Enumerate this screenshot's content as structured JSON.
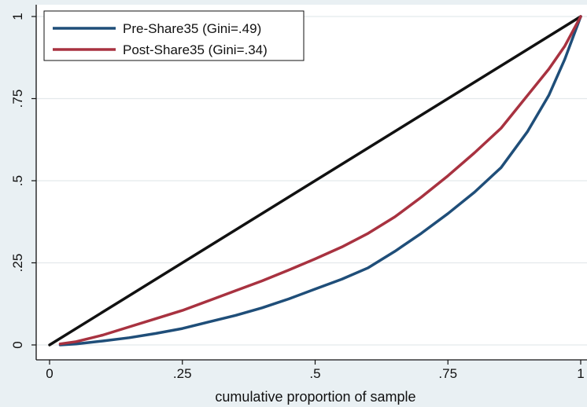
{
  "chart_data": {
    "type": "line",
    "title": "",
    "xlabel": "cumulative proportion of sample",
    "ylabel": "",
    "xlim": [
      0,
      1
    ],
    "ylim": [
      0,
      1
    ],
    "grid": true,
    "legend_position": "top-left",
    "x_ticks": [
      {
        "value": 0,
        "label": "0"
      },
      {
        "value": 0.25,
        "label": ".25"
      },
      {
        "value": 0.5,
        "label": ".5"
      },
      {
        "value": 0.75,
        "label": ".75"
      },
      {
        "value": 1,
        "label": "1"
      }
    ],
    "y_ticks": [
      {
        "value": 0,
        "label": "0"
      },
      {
        "value": 0.25,
        "label": ".25"
      },
      {
        "value": 0.5,
        "label": ".5"
      },
      {
        "value": 0.75,
        "label": ".75"
      },
      {
        "value": 1,
        "label": "1"
      }
    ],
    "series": [
      {
        "name": "",
        "color": "#111111",
        "x": [
          0,
          1
        ],
        "y": [
          0,
          1
        ]
      },
      {
        "name": "Pre-Share35 (Gini=.49)",
        "color": "#1f4e79",
        "x": [
          0.02,
          0.05,
          0.1,
          0.15,
          0.2,
          0.25,
          0.3,
          0.35,
          0.4,
          0.45,
          0.5,
          0.55,
          0.6,
          0.65,
          0.7,
          0.75,
          0.8,
          0.85,
          0.9,
          0.94,
          0.97,
          1.0
        ],
        "y": [
          0.0,
          0.003,
          0.012,
          0.022,
          0.035,
          0.05,
          0.07,
          0.09,
          0.113,
          0.14,
          0.17,
          0.2,
          0.235,
          0.285,
          0.34,
          0.4,
          0.465,
          0.54,
          0.65,
          0.76,
          0.87,
          1.0
        ]
      },
      {
        "name": "Post-Share35 (Gini=.34)",
        "color": "#a83240",
        "x": [
          0.02,
          0.05,
          0.1,
          0.15,
          0.2,
          0.25,
          0.3,
          0.35,
          0.4,
          0.45,
          0.5,
          0.55,
          0.6,
          0.65,
          0.7,
          0.75,
          0.8,
          0.85,
          0.9,
          0.94,
          0.97,
          1.0
        ],
        "y": [
          0.003,
          0.01,
          0.03,
          0.055,
          0.08,
          0.105,
          0.135,
          0.165,
          0.195,
          0.228,
          0.262,
          0.298,
          0.34,
          0.39,
          0.45,
          0.515,
          0.585,
          0.66,
          0.76,
          0.84,
          0.91,
          1.0
        ]
      }
    ]
  }
}
